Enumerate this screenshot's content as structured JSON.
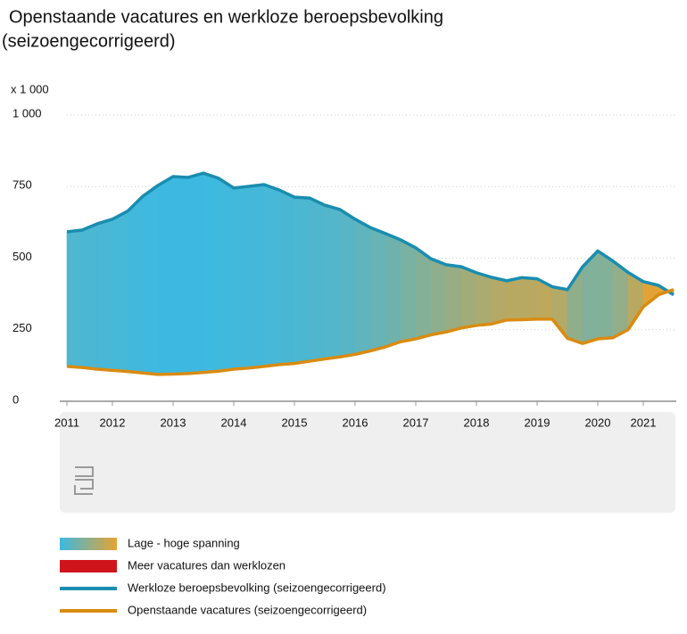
{
  "chart_data": {
    "type": "line",
    "title": "Openstaande vacatures en werkloze beroepsbevolking",
    "subtitle": "(seizoengecorrigeerd)",
    "y_unit": "x 1 000",
    "x": [
      2011.75,
      2012,
      2012.25,
      2012.5,
      2012.75,
      2013,
      2013.25,
      2013.5,
      2013.75,
      2014,
      2014.25,
      2014.5,
      2014.75,
      2015,
      2015.25,
      2015.5,
      2015.75,
      2016,
      2016.25,
      2016.5,
      2016.75,
      2017,
      2017.25,
      2017.5,
      2017.75,
      2018,
      2018.25,
      2018.5,
      2018.75,
      2019,
      2019.25,
      2019.5,
      2019.75,
      2020,
      2020.25,
      2020.5,
      2020.75,
      2021,
      2021.25,
      2021.5,
      2021.75
    ],
    "series": [
      {
        "name": "Werkloze beroepsbevolking (seizoengecorrigeerd)",
        "color": "#1a8db0",
        "values": [
          592,
          598,
          620,
          636,
          664,
          716,
          754,
          785,
          782,
          797,
          779,
          745,
          751,
          757,
          738,
          713,
          710,
          685,
          670,
          636,
          607,
          586,
          564,
          536,
          498,
          477,
          470,
          449,
          433,
          421,
          432,
          428,
          400,
          390,
          470,
          525,
          490,
          450,
          418,
          405,
          372
        ]
      },
      {
        "name": "Openstaande vacatures (seizoengecorrigeerd)",
        "color": "#d98b10",
        "values": [
          122,
          118,
          112,
          108,
          104,
          99,
          94,
          95,
          97,
          101,
          105,
          112,
          116,
          122,
          128,
          132,
          140,
          148,
          155,
          164,
          176,
          190,
          208,
          218,
          232,
          242,
          256,
          265,
          270,
          284,
          285,
          287,
          287,
          220,
          202,
          218,
          222,
          250,
          330,
          372,
          390
        ]
      }
    ],
    "areas": [
      {
        "name": "Lage - hoge spanning",
        "colors": [
          "#3cb9e2",
          "#e6a332"
        ]
      },
      {
        "name": "Meer vacatures dan werklozen",
        "color": "#d0141c"
      }
    ],
    "xlim": [
      2011.75,
      2021.75
    ],
    "xticks": [
      {
        "value": 2011.75,
        "label": "2011"
      },
      {
        "value": 2012.5,
        "label": "2012"
      },
      {
        "value": 2013.5,
        "label": "2013"
      },
      {
        "value": 2014.5,
        "label": "2014"
      },
      {
        "value": 2015.5,
        "label": "2015"
      },
      {
        "value": 2016.5,
        "label": "2016"
      },
      {
        "value": 2017.5,
        "label": "2017"
      },
      {
        "value": 2018.5,
        "label": "2018"
      },
      {
        "value": 2019.5,
        "label": "2019"
      },
      {
        "value": 2020.5,
        "label": "2020"
      },
      {
        "value": 2021.25,
        "label": "2021"
      }
    ],
    "ylim": [
      0,
      1000
    ],
    "yticks": [
      0,
      250,
      500,
      750,
      {
        "value": 1000,
        "label": "1 000"
      }
    ],
    "grid": true
  }
}
